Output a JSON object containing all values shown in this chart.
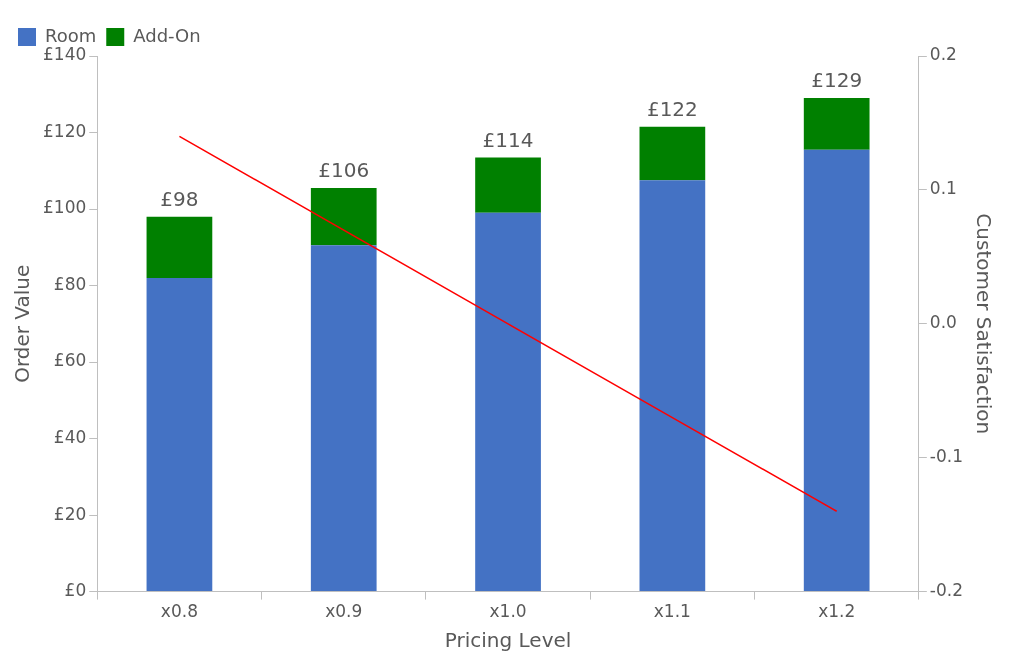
{
  "chart_data": {
    "type": "bar",
    "xlabel": "Pricing Level",
    "ylabel": "Order Value",
    "y2label": "Customer Satisfaction",
    "categories": [
      "x0.8",
      "x0.9",
      "x1.0",
      "x1.1",
      "x1.2"
    ],
    "stacked": true,
    "series": [
      {
        "name": "Room",
        "color": "#4472c4",
        "values": [
          82,
          90.5,
          99,
          107.5,
          115.5
        ]
      },
      {
        "name": "Add-On",
        "color": "#008000",
        "values": [
          16,
          15,
          14.5,
          14,
          13.5
        ]
      },
      {
        "type": "line",
        "axis": "y2",
        "color": "#ff0000",
        "values": [
          0.14,
          0.07,
          0.0,
          -0.07,
          -0.14
        ]
      }
    ],
    "totals": [
      "£98",
      "£106",
      "£114",
      "£122",
      "£129"
    ],
    "ylim": [
      0,
      140
    ],
    "yticks": [
      {
        "value": 0,
        "label": "£0"
      },
      {
        "value": 20,
        "label": "£20"
      },
      {
        "value": 40,
        "label": "£40"
      },
      {
        "value": 60,
        "label": "£60"
      },
      {
        "value": 80,
        "label": "£80"
      },
      {
        "value": 100,
        "label": "£100"
      },
      {
        "value": 120,
        "label": "£120"
      },
      {
        "value": 140,
        "label": "£140"
      }
    ],
    "y2lim": [
      -0.2,
      0.2
    ],
    "y2ticks": [
      {
        "value": -0.2,
        "label": "-0.2"
      },
      {
        "value": -0.1,
        "label": "-0.1"
      },
      {
        "value": 0,
        "label": "0.0"
      },
      {
        "value": 0.1,
        "label": "0.1"
      },
      {
        "value": 0.2,
        "label": "0.2"
      }
    ],
    "grid": false,
    "legend": "top",
    "marker": "none",
    "line_style": "solid"
  }
}
